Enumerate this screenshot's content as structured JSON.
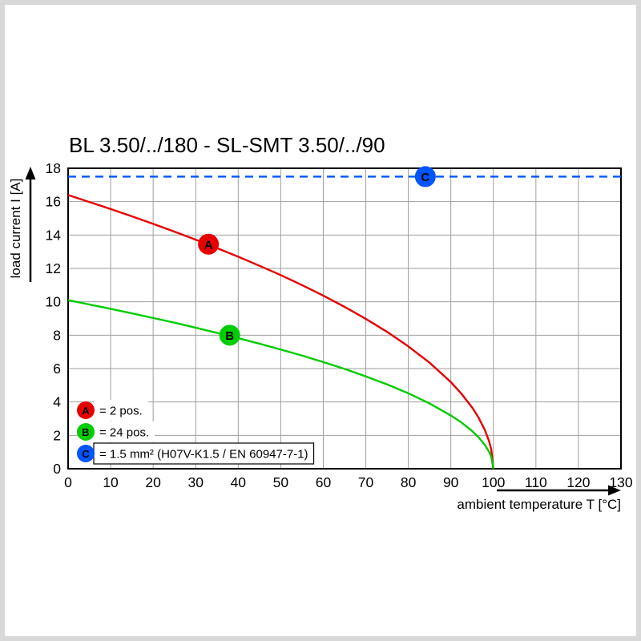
{
  "title": "BL 3.50/../180 - SL-SMT 3.50/../90",
  "chart_data": {
    "type": "line",
    "title": "BL 3.50/../180 - SL-SMT 3.50/../90",
    "xlabel": "ambient temperature T [°C]",
    "ylabel": "load current I [A]",
    "xlim": [
      0,
      130
    ],
    "ylim": [
      0,
      18
    ],
    "x_ticks": [
      0,
      10,
      20,
      30,
      40,
      50,
      60,
      70,
      80,
      90,
      100,
      110,
      120,
      130
    ],
    "y_ticks": [
      0,
      2,
      4,
      6,
      8,
      10,
      12,
      14,
      16,
      18
    ],
    "grid": true,
    "grid_color": "#9e9e9e",
    "series": [
      {
        "id": "A",
        "name": "2 pos.",
        "color": "#e60000",
        "style": "solid",
        "x": [
          0,
          5,
          10,
          15,
          20,
          25,
          30,
          35,
          40,
          45,
          50,
          55,
          60,
          65,
          70,
          75,
          80,
          85,
          90,
          92.5,
          95,
          96.5,
          98,
          99,
          99.5,
          100
        ],
        "y": [
          16.4,
          15.98,
          15.56,
          15.12,
          14.67,
          14.2,
          13.72,
          13.22,
          12.7,
          12.16,
          11.6,
          11.0,
          10.37,
          9.7,
          8.98,
          8.2,
          7.33,
          6.35,
          5.19,
          4.49,
          3.67,
          3.07,
          2.32,
          1.64,
          1.16,
          0
        ],
        "marker": {
          "x": 33,
          "y": 13.45,
          "label": "A"
        }
      },
      {
        "id": "B",
        "name": "24 pos.",
        "color": "#00cc00",
        "style": "solid",
        "x": [
          0,
          5,
          10,
          15,
          20,
          25,
          30,
          35,
          40,
          45,
          50,
          55,
          60,
          65,
          70,
          75,
          80,
          85,
          90,
          92.5,
          95,
          96.5,
          98,
          99,
          99.5,
          100
        ],
        "y": [
          10.1,
          9.84,
          9.58,
          9.31,
          9.03,
          8.75,
          8.45,
          8.14,
          7.82,
          7.49,
          7.14,
          6.78,
          6.39,
          5.98,
          5.53,
          5.05,
          4.52,
          3.91,
          3.19,
          2.77,
          2.26,
          1.89,
          1.43,
          1.01,
          0.71,
          0
        ],
        "marker": {
          "x": 38,
          "y": 8.0,
          "label": "B"
        }
      },
      {
        "id": "C",
        "name": "1.5 mm² (H07V-K1.5 / EN 60947-7-1)",
        "color": "#0055ff",
        "style": "dashed",
        "x": [
          0,
          130
        ],
        "y": [
          17.5,
          17.5
        ],
        "marker": {
          "x": 84,
          "y": 17.5,
          "label": "C"
        }
      }
    ],
    "legend_position": "bottom-left-inside",
    "legend": [
      {
        "label": "A",
        "text": "= 2 pos.",
        "color": "#e60000",
        "boxed": false
      },
      {
        "label": "B",
        "text": "= 24 pos.",
        "color": "#00cc00",
        "boxed": false
      },
      {
        "label": "C",
        "text": "= 1.5 mm² (H07V-K1.5 / EN 60947-7-1)",
        "color": "#0055ff",
        "boxed": true
      }
    ]
  }
}
